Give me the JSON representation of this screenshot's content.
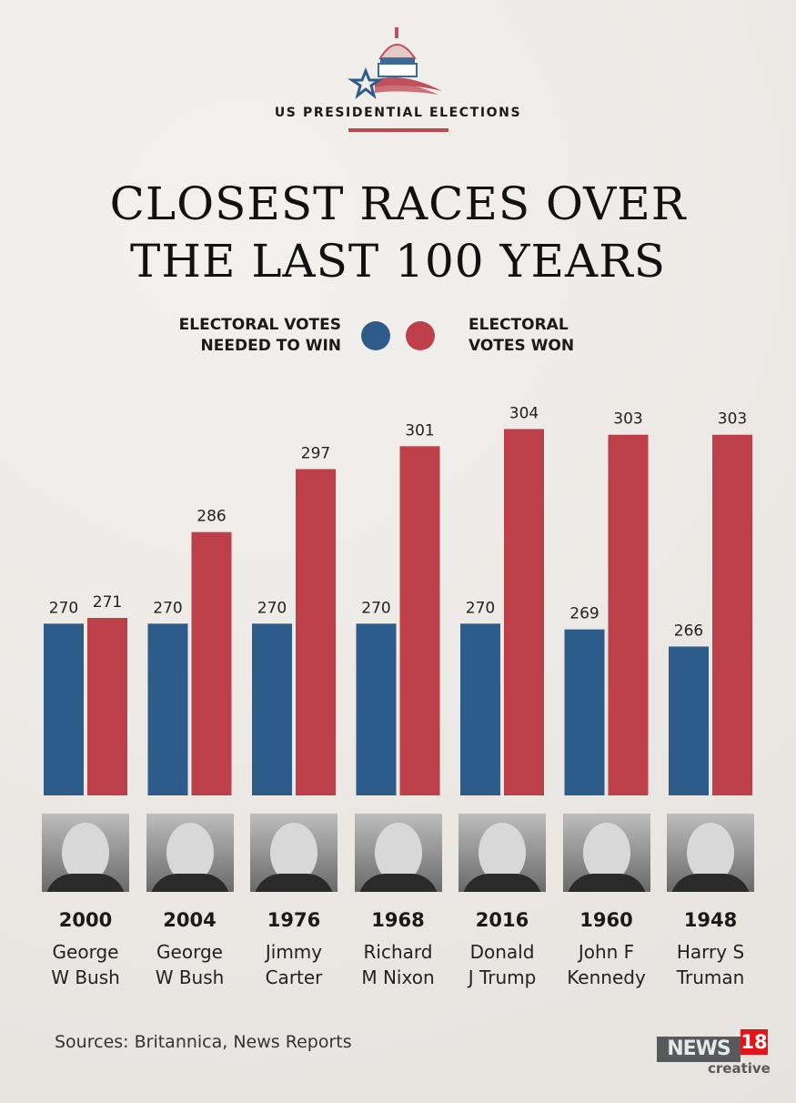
{
  "header": {
    "kicker": "US PRESIDENTIAL ELECTIONS",
    "title_line1": "CLOSEST RACES OVER",
    "title_line2": "THE LAST 100 YEARS"
  },
  "legend": {
    "needed_line1": "ELECTORAL VOTES",
    "needed_line2": "NEEDED TO WIN",
    "won_line1": "ELECTORAL",
    "won_line2": "VOTES WON"
  },
  "colors": {
    "needed": "#2d5c8b",
    "won": "#bc3f4a"
  },
  "chart_data": {
    "type": "bar",
    "categories": [
      "2000",
      "2004",
      "1976",
      "1968",
      "2016",
      "1960",
      "1948"
    ],
    "candidates": [
      [
        "George",
        "W Bush"
      ],
      [
        "George",
        "W Bush"
      ],
      [
        "Jimmy",
        "Carter"
      ],
      [
        "Richard",
        "M Nixon"
      ],
      [
        "Donald",
        "J Trump"
      ],
      [
        "John F",
        "Kennedy"
      ],
      [
        "Harry S",
        "Truman"
      ]
    ],
    "series": [
      {
        "name": "ELECTORAL VOTES NEEDED TO WIN",
        "values": [
          270,
          270,
          270,
          270,
          270,
          269,
          266
        ]
      },
      {
        "name": "ELECTORAL VOTES WON",
        "values": [
          271,
          286,
          297,
          301,
          304,
          303,
          303
        ]
      }
    ],
    "ylim": [
      240,
      310
    ],
    "grid": false,
    "legend": "top-center"
  },
  "footer": {
    "sources": "Sources: Britannica, News Reports",
    "brand_news": "NEWS",
    "brand_18": "18",
    "brand_creative": "creative"
  }
}
